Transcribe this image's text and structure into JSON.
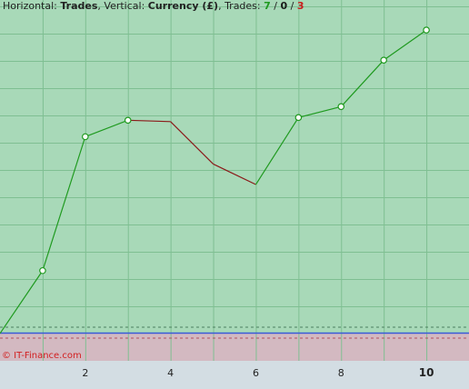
{
  "header": {
    "horizontal_label": "Horizontal:",
    "horizontal_value": "Trades",
    "sep1": ", ",
    "vertical_label": "Vertical:",
    "vertical_value": "Currency (£)",
    "trades_label": ", Trades:",
    "wins": "7",
    "slash1": " / ",
    "breakeven": "0",
    "slash2": " / ",
    "losses": "3"
  },
  "watermark": "© IT-Finance.com",
  "colors": {
    "profit_bg": "#a8d9b8",
    "loss_bg": "#d3b9c1",
    "axis_bg": "#d3dde3",
    "win_line": "#1f9a1f",
    "loss_line": "#8b1a1a",
    "zero_line": "#3a5ad8",
    "wins_text": "#1f9a1f",
    "breakeven_text": "#1a1a1a",
    "losses_text": "#c81e1e",
    "watermark": "#d21f1f"
  },
  "chart_data": {
    "type": "line",
    "xlabel": "Trades",
    "ylabel": "Currency (£)",
    "x_ticks": [
      "2",
      "4",
      "6",
      "8",
      "10"
    ],
    "x": [
      0,
      1,
      2,
      3,
      4,
      5,
      6,
      7,
      8,
      9,
      10
    ],
    "y": [
      0,
      23,
      72,
      78,
      77.5,
      62,
      54.5,
      79,
      83,
      100,
      111
    ],
    "trade_result": [
      "",
      "win",
      "win",
      "win",
      "loss",
      "loss",
      "loss",
      "win",
      "win",
      "win",
      "win"
    ],
    "xlim": [
      0,
      11
    ],
    "ylim": [
      -10,
      122
    ],
    "grid": true
  }
}
